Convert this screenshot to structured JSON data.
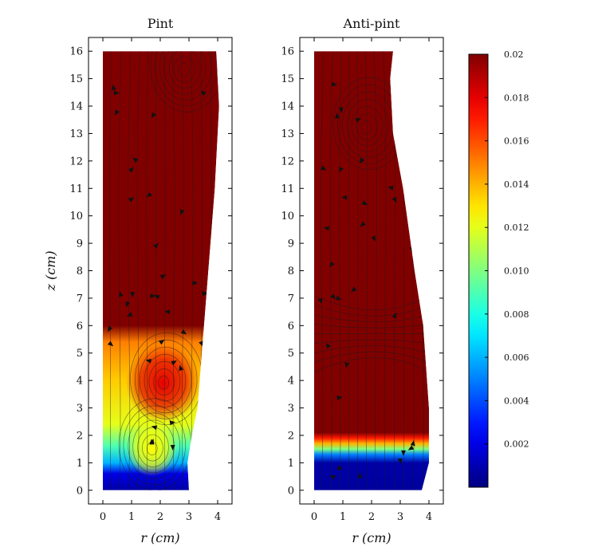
{
  "chart_data": [
    {
      "type": "heatmap",
      "title": "Pint",
      "xlabel": "r (cm)",
      "ylabel": "z (cm)",
      "xlim": [
        -0.5,
        4.5
      ],
      "ylim": [
        -0.5,
        16.5
      ],
      "xticks": [
        0,
        1,
        2,
        3,
        4
      ],
      "yticks": [
        0,
        1,
        2,
        3,
        4,
        5,
        6,
        7,
        8,
        9,
        10,
        11,
        12,
        13,
        14,
        15,
        16
      ],
      "domain_boundary": [
        [
          0,
          0
        ],
        [
          3,
          0
        ],
        [
          2.95,
          1.0
        ],
        [
          3.1,
          2.0
        ],
        [
          3.3,
          3.0
        ],
        [
          3.45,
          5.0
        ],
        [
          3.6,
          7.0
        ],
        [
          3.75,
          9.0
        ],
        [
          3.9,
          11.0
        ],
        [
          4.0,
          13.0
        ],
        [
          4.05,
          14.0
        ],
        [
          4.0,
          15.0
        ],
        [
          3.95,
          16
        ],
        [
          0,
          16
        ]
      ],
      "value_stops_by_height": [
        {
          "z": 0.0,
          "value": 0.0008
        },
        {
          "z": 0.6,
          "value": 0.002
        },
        {
          "z": 1.0,
          "value": 0.006
        },
        {
          "z": 1.6,
          "value": 0.009
        },
        {
          "z": 2.4,
          "value": 0.012
        },
        {
          "z": 4.0,
          "value": 0.0135
        },
        {
          "z": 5.4,
          "value": 0.015
        },
        {
          "z": 6.0,
          "value": 0.02
        },
        {
          "z": 16.0,
          "value": 0.02
        }
      ],
      "features": [
        {
          "kind": "vortex",
          "r": 2.1,
          "z": 3.9,
          "value": 0.018
        },
        {
          "kind": "vortex",
          "r": 1.7,
          "z": 1.5,
          "value": 0.0125
        },
        {
          "kind": "vortex",
          "r": 2.8,
          "z": 15.3,
          "value": 0.02
        }
      ]
    },
    {
      "type": "heatmap",
      "title": "Anti-pint",
      "xlabel": "r (cm)",
      "ylabel": "",
      "xlim": [
        -0.5,
        4.5
      ],
      "ylim": [
        -0.5,
        16.5
      ],
      "xticks": [
        0,
        1,
        2,
        3,
        4
      ],
      "yticks": [
        0,
        1,
        2,
        3,
        4,
        5,
        6,
        7,
        8,
        9,
        10,
        11,
        12,
        13,
        14,
        15,
        16
      ],
      "domain_boundary": [
        [
          0,
          0
        ],
        [
          3.75,
          0
        ],
        [
          4.0,
          1.0
        ],
        [
          4.0,
          3.0
        ],
        [
          3.8,
          6.0
        ],
        [
          3.5,
          8.0
        ],
        [
          3.1,
          11.0
        ],
        [
          2.75,
          13.0
        ],
        [
          2.65,
          15.0
        ],
        [
          2.75,
          16
        ],
        [
          0,
          16
        ]
      ],
      "value_stops_by_height": [
        {
          "z": 0.0,
          "value": 0.0006
        },
        {
          "z": 1.0,
          "value": 0.0008
        },
        {
          "z": 1.3,
          "value": 0.005
        },
        {
          "z": 1.5,
          "value": 0.01
        },
        {
          "z": 1.7,
          "value": 0.014
        },
        {
          "z": 1.9,
          "value": 0.017
        },
        {
          "z": 2.1,
          "value": 0.02
        },
        {
          "z": 16.0,
          "value": 0.02
        }
      ],
      "features": [
        {
          "kind": "vortex",
          "r": 1.8,
          "z": 13.2,
          "value": 0.02
        },
        {
          "kind": "stagnation",
          "r": 2.2,
          "z": 5.7,
          "value": 0.02
        }
      ]
    }
  ],
  "colorbar": {
    "colormap": "jet",
    "range": [
      0,
      0.02
    ],
    "ticks": [
      "0.002",
      "0.004",
      "0.006",
      "0.008",
      "0.010",
      "0.012",
      "0.014",
      "0.016",
      "0.018",
      "0.02"
    ]
  }
}
